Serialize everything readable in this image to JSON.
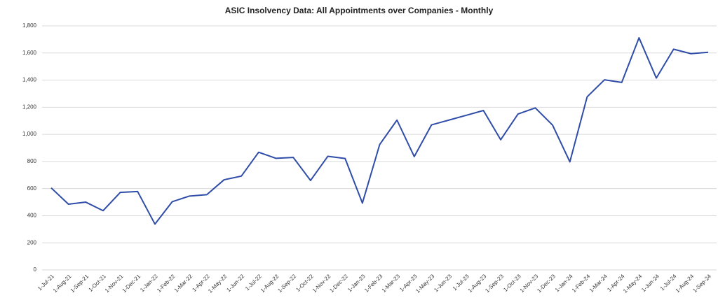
{
  "chart_data": {
    "type": "line",
    "title": "ASIC Insolvency Data: All Appointments over Companies - Monthly",
    "categories": [
      "1-Jul-21",
      "1-Aug-21",
      "1-Sep-21",
      "1-Oct-21",
      "1-Nov-21",
      "1-Dec-21",
      "1-Jan-22",
      "1-Feb-22",
      "1-Mar-22",
      "1-Apr-22",
      "1-May-22",
      "1-Jun-22",
      "1-Jul-22",
      "1-Aug-22",
      "1-Sep-22",
      "1-Oct-22",
      "1-Nov-22",
      "1-Dec-22",
      "1-Jan-23",
      "1-Feb-23",
      "1-Mar-23",
      "1-Apr-23",
      "1-May-23",
      "1-Jun-23",
      "1-Jul-23",
      "1-Aug-23",
      "1-Sep-23",
      "1-Oct-23",
      "1-Nov-23",
      "1-Dec-23",
      "1-Jan-24",
      "1-Feb-24",
      "1-Mar-24",
      "1-Apr-24",
      "1-May-24",
      "1-Jun-24",
      "1-Jul-24",
      "1-Aug-24",
      "1-Sep-24"
    ],
    "values": [
      605,
      485,
      500,
      437,
      572,
      578,
      338,
      503,
      545,
      555,
      665,
      692,
      868,
      823,
      830,
      660,
      838,
      822,
      493,
      925,
      1105,
      836,
      1070,
      1105,
      1140,
      1176,
      960,
      1150,
      1195,
      1068,
      797,
      1277,
      1402,
      1383,
      1712,
      1415,
      1628,
      1595,
      1605
    ],
    "color": "#2f4da8",
    "ylim": [
      0,
      1800
    ],
    "yticks": [
      0,
      200,
      400,
      600,
      800,
      {
        "value": 1000,
        "label": "1,000"
      },
      {
        "value": 1200,
        "label": "1,200"
      },
      {
        "value": 1400,
        "label": "1,400"
      },
      {
        "value": 1600,
        "label": "1,600"
      },
      {
        "value": 1800,
        "label": "1,800"
      }
    ],
    "grid": true
  }
}
